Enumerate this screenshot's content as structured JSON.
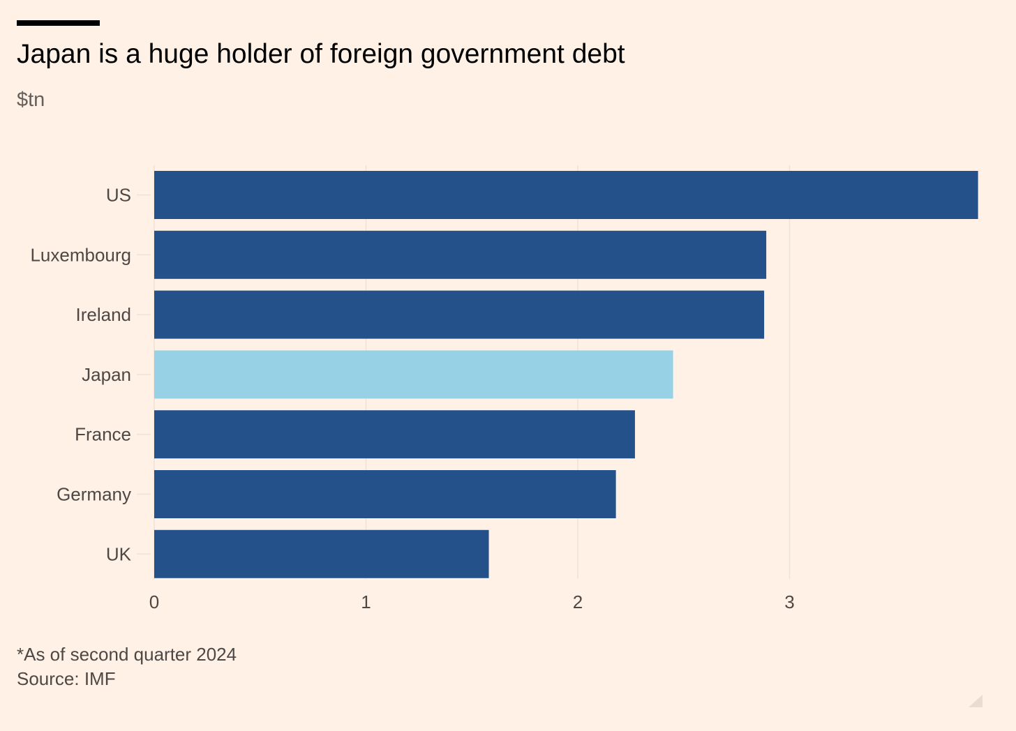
{
  "header": {
    "title": "Japan is a huge holder of foreign government debt",
    "subtitle": "$tn"
  },
  "footer": {
    "note": "*As of second quarter 2024",
    "source": "Source: IMF"
  },
  "colors": {
    "background": "#fff1e5",
    "bar": "#245189",
    "highlight": "#96d1e6",
    "gridline": "#ede3d9",
    "label": "#4d4845"
  },
  "chart_data": {
    "type": "bar",
    "orientation": "horizontal",
    "title": "Japan is a huge holder of foreign government debt",
    "subtitle": "$tn",
    "categories": [
      "US",
      "Luxembourg",
      "Ireland",
      "Japan",
      "France",
      "Germany",
      "UK"
    ],
    "values": [
      3.89,
      2.89,
      2.88,
      2.45,
      2.27,
      2.18,
      1.58
    ],
    "highlight": "Japan",
    "xlim": [
      0,
      3.89
    ],
    "xticks": [
      0,
      1,
      2,
      3
    ],
    "grid": "vertical"
  }
}
